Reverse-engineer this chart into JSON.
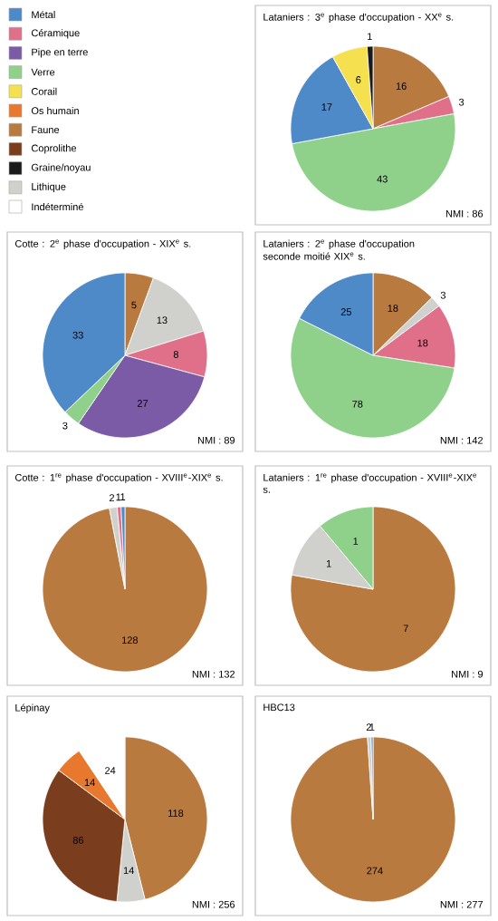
{
  "chart_data": [
    {
      "type": "other",
      "categories": [
        "Métal",
        "Céramique",
        "Pipe en terre",
        "Verre",
        "Corail",
        "Os humain",
        "Faune",
        "Coprolithe",
        "Graine/noyau",
        "Lithique",
        "Indéterminé"
      ],
      "colors": [
        "#4e8ac8",
        "#e0708a",
        "#7b5aa6",
        "#8fd18a",
        "#f5e050",
        "#e8782e",
        "#b97a40",
        "#7a3e1e",
        "#1a1a1a",
        "#d0d0cc",
        "#ffffff"
      ]
    },
    {
      "type": "pie",
      "title": "Lataniers : 3$^{e}$ phase d'occupation - XX$^{e}$ s.",
      "categories": [
        null,
        null,
        null,
        null,
        null,
        null
      ],
      "values": [
        16,
        3,
        43,
        17,
        6,
        1
      ],
      "colors": [
        "#b97a40",
        "#e0708a",
        "#8fd18a",
        "#4e8ac8",
        "#f5e050",
        "#1a1a1a"
      ],
      "data_labels": true,
      "annotations": [
        "NMI : 86"
      ]
    },
    {
      "type": "pie",
      "title": "Cotte : 2$^{e}$ phase d'occupation - XIX$^{e}$ s.",
      "categories": [
        null,
        null,
        null,
        null,
        null,
        null
      ],
      "values": [
        5,
        13,
        8,
        27,
        3,
        33
      ],
      "colors": [
        "#b97a40",
        "#d0d0cc",
        "#e0708a",
        "#7b5aa6",
        "#8fd18a",
        "#4e8ac8"
      ],
      "data_labels": true,
      "annotations": [
        "NMI : 89"
      ]
    },
    {
      "type": "pie",
      "title": "Lataniers : 2$^{e}$ phase d'occupation",
      "subtitle": "seconde moitié XIX$^{e}$ s.",
      "categories": [
        null,
        null,
        null,
        null,
        null
      ],
      "values": [
        18,
        3,
        18,
        78,
        25
      ],
      "colors": [
        "#b97a40",
        "#d0d0cc",
        "#e0708a",
        "#8fd18a",
        "#4e8ac8"
      ],
      "data_labels": true,
      "annotations": [
        "NMI : 142"
      ]
    },
    {
      "type": "pie",
      "title": "Cotte : 1$^{re}$ phase d'occupation - XVIII$^{e}$-XIX$^{e}$ s.",
      "categories": [
        null,
        null,
        null,
        null
      ],
      "values": [
        128,
        2,
        1,
        1
      ],
      "colors": [
        "#b97a40",
        "#d0d0cc",
        "#e0708a",
        "#4e8ac8"
      ],
      "data_labels": true,
      "annotations": [
        "NMI : 132"
      ]
    },
    {
      "type": "pie",
      "title": "Lataniers : 1$^{re}$ phase d'occupation - XVIII$^{e}$-XIX$^{e}$ s.",
      "categories": [
        null,
        null,
        null
      ],
      "values": [
        7,
        1,
        1
      ],
      "colors": [
        "#b97a40",
        "#d0d0cc",
        "#8fd18a"
      ],
      "data_labels": true,
      "annotations": [
        "NMI : 9"
      ]
    },
    {
      "type": "pie",
      "title": "Lépinay",
      "categories": [
        null,
        null,
        null,
        null,
        null
      ],
      "values": [
        118,
        14,
        86,
        14,
        24
      ],
      "colors": [
        "#b97a40",
        "#d0d0cc",
        "#7a3e1e",
        "#e8782e",
        "#ffffff"
      ],
      "data_labels": true,
      "annotations": [
        "NMI : 256"
      ]
    },
    {
      "type": "pie",
      "title": "HBC13",
      "categories": [
        null,
        null,
        null
      ],
      "values": [
        274,
        2,
        1
      ],
      "colors": [
        "#b97a40",
        "#d0d0cc",
        "#4e8ac8"
      ],
      "data_labels": true,
      "annotations": [
        "NMI : 277"
      ]
    }
  ]
}
